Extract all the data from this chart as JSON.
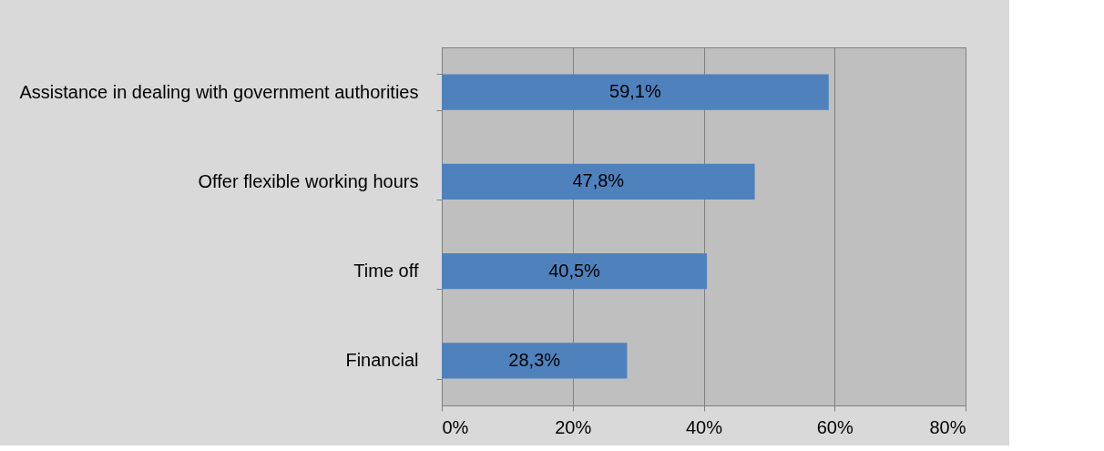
{
  "chart_data": {
    "type": "bar",
    "orientation": "horizontal",
    "categories": [
      "Assistance in dealing with government authorities",
      "Offer flexible working hours",
      "Time off",
      "Financial"
    ],
    "values": [
      59.1,
      47.8,
      40.5,
      28.3
    ],
    "value_labels": [
      "59,1%",
      "47,8%",
      "40,5%",
      "28,3%"
    ],
    "color": "#4f81bd",
    "xlim": [
      0,
      80
    ],
    "xticks": [
      {
        "value": 0,
        "label": "0%"
      },
      {
        "value": 20,
        "label": "20%"
      },
      {
        "value": 40,
        "label": "40%"
      },
      {
        "value": 60,
        "label": "60%"
      },
      {
        "value": 80,
        "label": "80%"
      }
    ],
    "grid": "x"
  }
}
